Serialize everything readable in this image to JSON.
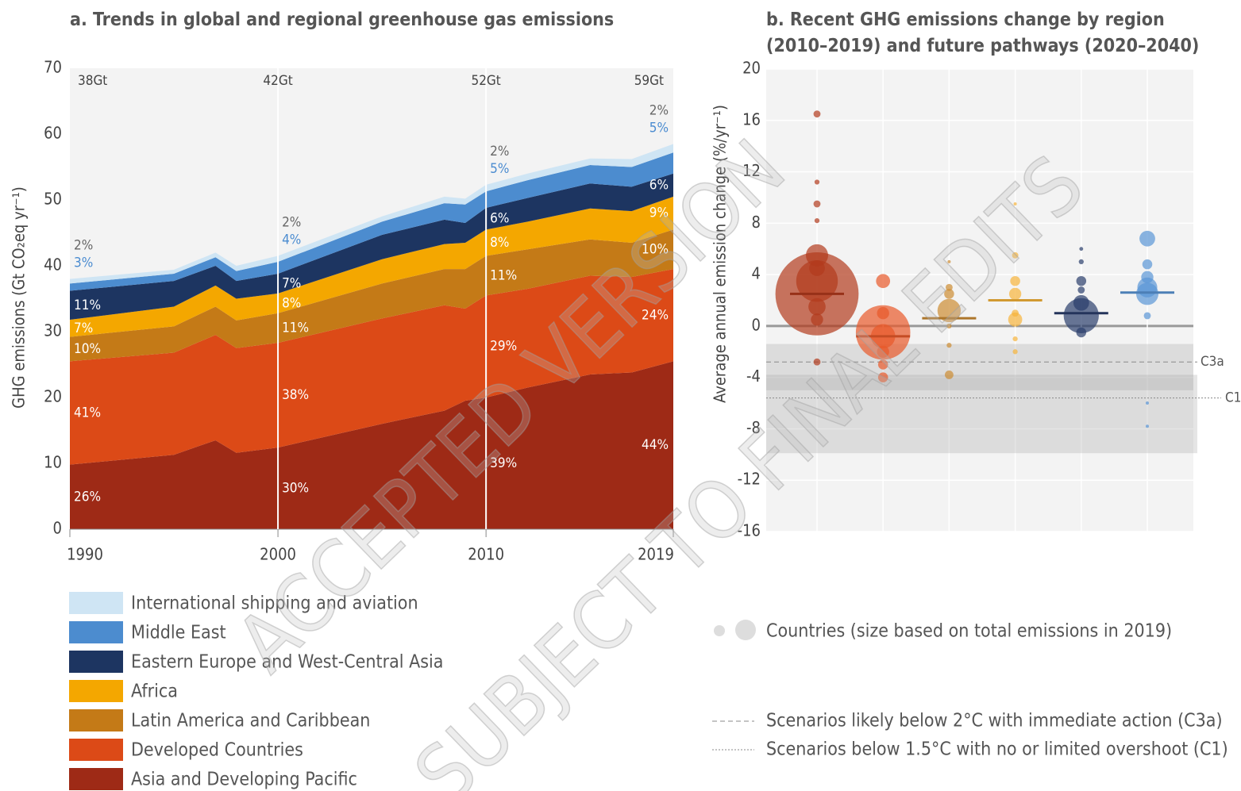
{
  "chart_data": [
    {
      "type": "stacked_area",
      "title": "a. Trends in global and regional greenhouse gas emissions",
      "y_label": "GHG emissions (Gt CO₂eq yr⁻¹)",
      "x": [
        1990,
        1995,
        1997,
        1998,
        2000,
        2005,
        2008,
        2009,
        2010,
        2012,
        2015,
        2017,
        2019
      ],
      "xlim": [
        1990,
        2019
      ],
      "xticks": [
        1990,
        2000,
        2010,
        2019
      ],
      "ylim": [
        0,
        70
      ],
      "yticks": [
        0,
        10,
        20,
        30,
        40,
        50,
        60,
        70
      ],
      "series": [
        {
          "name": "Asia and Developing Pacific",
          "color": "#9e2a16",
          "values": [
            9.8,
            11.3,
            13.5,
            11.6,
            12.4,
            16,
            18,
            19.5,
            20,
            21.5,
            23.5,
            23.8,
            25.5
          ]
        },
        {
          "name": "Developed Countries",
          "color": "#dc4a17",
          "values": [
            15.7,
            15.5,
            16,
            15.9,
            15.9,
            16,
            16,
            14,
            15.5,
            15,
            15,
            14.5,
            14
          ]
        },
        {
          "name": "Latin America and Caribbean",
          "color": "#c47a17",
          "values": [
            3.7,
            4,
            4.3,
            4.2,
            4.5,
            5.3,
            5.5,
            6,
            6,
            6,
            5.5,
            5.2,
            6
          ]
        },
        {
          "name": "Africa",
          "color": "#f4a700",
          "values": [
            2.6,
            3,
            3.2,
            3.3,
            3,
            3.7,
            3.8,
            4,
            4,
            4.2,
            4.7,
            4.8,
            5
          ]
        },
        {
          "name": "Eastern Europe and West-Central Asia",
          "color": "#1d3561",
          "values": [
            4.4,
            3.9,
            3,
            2.7,
            3,
            3.7,
            3.7,
            3,
            3.3,
            3.6,
            3.8,
            3.7,
            3.5
          ]
        },
        {
          "name": "Middle East",
          "color": "#4c8ccf",
          "values": [
            1.1,
            1.1,
            1.3,
            1.5,
            1.8,
            2,
            2.5,
            2.8,
            2.5,
            2.7,
            2.8,
            3,
            3.2
          ]
        },
        {
          "name": "International shipping and aviation",
          "color": "#cfe5f4",
          "values": [
            0.7,
            0.6,
            0.7,
            0.8,
            0.9,
            0.8,
            1,
            0.9,
            1,
            1,
            1,
            1.2,
            1.3
          ]
        }
      ],
      "annotations": [
        {
          "x": 1990,
          "total": "38Gt",
          "shares": [
            "26%",
            "41%",
            "10%",
            "7%",
            "11%",
            "3%",
            "2%"
          ]
        },
        {
          "x": 2000,
          "total": "42Gt",
          "shares": [
            "30%",
            "38%",
            "11%",
            "8%",
            "7%",
            "4%",
            "2%"
          ]
        },
        {
          "x": 2010,
          "total": "52Gt",
          "shares": [
            "39%",
            "29%",
            "11%",
            "8%",
            "6%",
            "5%",
            "2%"
          ]
        },
        {
          "x": 2019,
          "total": "59Gt",
          "shares": [
            "44%",
            "24%",
            "10%",
            "9%",
            "6%",
            "5%",
            "2%"
          ]
        }
      ]
    },
    {
      "type": "dot",
      "title": [
        "b. Recent GHG emissions change by region",
        "(2010–2019) and future pathways (2020–2040)"
      ],
      "y_label": "Average annual emission change (%/yr⁻¹)",
      "ylim": [
        -16,
        20
      ],
      "yticks": [
        -16,
        -12,
        -8,
        -4,
        0,
        4,
        8,
        12,
        16,
        20
      ],
      "series": [
        {
          "color": "#b23a1c",
          "median": 2.5,
          "points": [
            [
              2.5,
              14
            ],
            [
              3.5,
              3.5
            ],
            [
              5.5,
              1
            ],
            [
              16.5,
              0.1
            ],
            [
              11.2,
              0.05
            ],
            [
              9.5,
              0.1
            ],
            [
              8.2,
              0.05
            ],
            [
              1.5,
              0.6
            ],
            [
              0.5,
              0.3
            ],
            [
              -2.8,
              0.1
            ],
            [
              4.5,
              0.5
            ]
          ]
        },
        {
          "color": "#e8592a",
          "median": -0.8,
          "points": [
            [
              -0.5,
              6
            ],
            [
              -0.8,
              1.2
            ],
            [
              3.5,
              0.4
            ],
            [
              -2,
              0.3
            ],
            [
              -3,
              0.2
            ],
            [
              -4,
              0.2
            ],
            [
              1,
              0.3
            ]
          ]
        },
        {
          "color": "#cc8b32",
          "median": 0.6,
          "points": [
            [
              1.2,
              1.1
            ],
            [
              2.5,
              0.2
            ],
            [
              3,
              0.1
            ],
            [
              -1.5,
              0.05
            ],
            [
              -3.8,
              0.15
            ],
            [
              5,
              0.02
            ],
            [
              0,
              0.05
            ]
          ]
        },
        {
          "color": "#f6b43a",
          "median": 2,
          "points": [
            [
              2.5,
              0.3
            ],
            [
              3.5,
              0.2
            ],
            [
              5.5,
              0.08
            ],
            [
              9.5,
              0.02
            ],
            [
              0.5,
              0.4
            ],
            [
              -2,
              0.05
            ],
            [
              1,
              0.1
            ],
            [
              -1,
              0.05
            ]
          ]
        },
        {
          "color": "#2a3d6b",
          "median": 1,
          "points": [
            [
              0.8,
              2.5
            ],
            [
              1.8,
              0.5
            ],
            [
              3.5,
              0.2
            ],
            [
              5,
              0.05
            ],
            [
              6,
              0.03
            ],
            [
              -0.5,
              0.2
            ],
            [
              2.8,
              0.1
            ]
          ]
        },
        {
          "color": "#5a95d6",
          "median": 2.6,
          "points": [
            [
              2.5,
              1
            ],
            [
              3,
              0.8
            ],
            [
              6.8,
              0.5
            ],
            [
              4.8,
              0.2
            ],
            [
              3.8,
              0.3
            ],
            [
              0.8,
              0.1
            ],
            [
              -6,
              0.02
            ],
            [
              -7.8,
              0.02
            ]
          ]
        }
      ],
      "scenarios": [
        {
          "label": "C3a",
          "median": -2.8,
          "range": [
            -1.4,
            -5
          ],
          "legend": "Scenarios likely below 2°C with immediate action (C3a)"
        },
        {
          "label": "C1",
          "median": -5.6,
          "range": [
            -3.8,
            -9.9
          ],
          "legend": "Scenarios below 1.5°C with no or limited overshoot (C1)"
        }
      ],
      "size_legend": "Countries (size based on total emissions in 2019)"
    }
  ],
  "watermark": [
    "ACCEPTED VERSION",
    "SUBJECT TO FINAL EDITS"
  ]
}
